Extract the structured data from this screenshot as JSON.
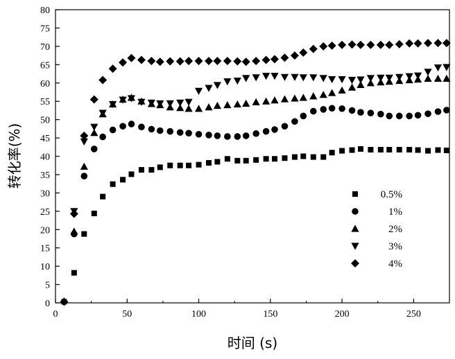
{
  "chart_data": {
    "type": "scatter",
    "title": "",
    "xlabel": "时间 (s)",
    "ylabel": "转化率(%)",
    "xlim": [
      0,
      275
    ],
    "ylim": [
      0,
      80
    ],
    "xticks": [
      0,
      50,
      100,
      150,
      200,
      250
    ],
    "yticks": [
      0,
      5,
      10,
      15,
      20,
      25,
      30,
      35,
      40,
      45,
      50,
      55,
      60,
      65,
      70,
      75,
      80
    ],
    "grid": false,
    "legend_position": "bottom-right",
    "series": [
      {
        "name": "0.5%",
        "marker": "square",
        "points": [
          [
            6,
            0.3
          ],
          [
            13,
            8.2
          ],
          [
            20,
            18.8
          ],
          [
            27,
            24.4
          ],
          [
            33,
            29
          ],
          [
            40,
            32.4
          ],
          [
            47,
            33.6
          ],
          [
            53,
            35.1
          ],
          [
            60,
            36.3
          ],
          [
            67,
            36.3
          ],
          [
            73,
            37
          ],
          [
            80,
            37.5
          ],
          [
            87,
            37.5
          ],
          [
            93,
            37.5
          ],
          [
            100,
            37.7
          ],
          [
            107,
            38.2
          ],
          [
            113,
            38.5
          ],
          [
            120,
            39.3
          ],
          [
            127,
            38.8
          ],
          [
            133,
            38.8
          ],
          [
            140,
            39
          ],
          [
            147,
            39.3
          ],
          [
            153,
            39.3
          ],
          [
            160,
            39.5
          ],
          [
            167,
            39.8
          ],
          [
            173,
            40
          ],
          [
            180,
            39.8
          ],
          [
            187,
            39.8
          ],
          [
            193,
            41
          ],
          [
            200,
            41.5
          ],
          [
            207,
            41.7
          ],
          [
            213,
            42
          ],
          [
            220,
            41.8
          ],
          [
            227,
            41.8
          ],
          [
            233,
            41.8
          ],
          [
            240,
            41.8
          ],
          [
            247,
            41.8
          ],
          [
            253,
            41.7
          ],
          [
            260,
            41.5
          ],
          [
            267,
            41.7
          ],
          [
            273,
            41.6
          ]
        ]
      },
      {
        "name": "1%",
        "marker": "circle",
        "points": [
          [
            13,
            18.8
          ],
          [
            20,
            34.6
          ],
          [
            27,
            42
          ],
          [
            33,
            45.3
          ],
          [
            40,
            47.2
          ],
          [
            47,
            48.2
          ],
          [
            53,
            48.8
          ],
          [
            60,
            48
          ],
          [
            67,
            47.4
          ],
          [
            73,
            47
          ],
          [
            80,
            46.8
          ],
          [
            87,
            46.5
          ],
          [
            93,
            46.3
          ],
          [
            100,
            46
          ],
          [
            107,
            45.8
          ],
          [
            113,
            45.6
          ],
          [
            120,
            45.4
          ],
          [
            127,
            45.4
          ],
          [
            133,
            45.6
          ],
          [
            140,
            46.2
          ],
          [
            147,
            46.8
          ],
          [
            153,
            47.3
          ],
          [
            160,
            48.2
          ],
          [
            167,
            49.5
          ],
          [
            173,
            51
          ],
          [
            180,
            52.3
          ],
          [
            187,
            52.8
          ],
          [
            193,
            53.1
          ],
          [
            200,
            53
          ],
          [
            207,
            52.5
          ],
          [
            213,
            52
          ],
          [
            220,
            51.8
          ],
          [
            227,
            51.5
          ],
          [
            233,
            51
          ],
          [
            240,
            51
          ],
          [
            247,
            51
          ],
          [
            253,
            51.2
          ],
          [
            260,
            51.6
          ],
          [
            267,
            52.2
          ],
          [
            273,
            52.6
          ]
        ]
      },
      {
        "name": "2%",
        "marker": "triangle-up",
        "points": [
          [
            13,
            19.5
          ],
          [
            20,
            37.2
          ],
          [
            27,
            46.4
          ],
          [
            33,
            51.5
          ],
          [
            40,
            54.2
          ],
          [
            47,
            55.5
          ],
          [
            53,
            56
          ],
          [
            60,
            55
          ],
          [
            67,
            54.3
          ],
          [
            73,
            54
          ],
          [
            80,
            53.4
          ],
          [
            87,
            53.2
          ],
          [
            93,
            53
          ],
          [
            100,
            53
          ],
          [
            107,
            53.4
          ],
          [
            113,
            53.8
          ],
          [
            120,
            54
          ],
          [
            127,
            54.2
          ],
          [
            133,
            54.4
          ],
          [
            140,
            54.8
          ],
          [
            147,
            55
          ],
          [
            153,
            55.3
          ],
          [
            160,
            55.6
          ],
          [
            167,
            55.8
          ],
          [
            173,
            56
          ],
          [
            180,
            56.4
          ],
          [
            187,
            56.8
          ],
          [
            193,
            57.3
          ],
          [
            200,
            58
          ],
          [
            207,
            58.8
          ],
          [
            213,
            59.5
          ],
          [
            220,
            60
          ],
          [
            227,
            60.2
          ],
          [
            233,
            60.4
          ],
          [
            240,
            60.6
          ],
          [
            247,
            60.8
          ],
          [
            253,
            61
          ],
          [
            260,
            61.2
          ],
          [
            267,
            61.2
          ],
          [
            273,
            61.2
          ]
        ]
      },
      {
        "name": "3%",
        "marker": "triangle-down",
        "points": [
          [
            13,
            25
          ],
          [
            20,
            44
          ],
          [
            27,
            48
          ],
          [
            33,
            51.8
          ],
          [
            40,
            54.2
          ],
          [
            47,
            55.4
          ],
          [
            53,
            55.8
          ],
          [
            60,
            54.8
          ],
          [
            67,
            54.6
          ],
          [
            73,
            54.4
          ],
          [
            80,
            54.4
          ],
          [
            87,
            54.6
          ],
          [
            93,
            54.8
          ],
          [
            100,
            57.8
          ],
          [
            107,
            58.6
          ],
          [
            113,
            59.4
          ],
          [
            120,
            60.4
          ],
          [
            127,
            60.6
          ],
          [
            133,
            61.3
          ],
          [
            140,
            61.5
          ],
          [
            147,
            61.9
          ],
          [
            153,
            61.9
          ],
          [
            160,
            61.6
          ],
          [
            167,
            61.6
          ],
          [
            173,
            61.5
          ],
          [
            180,
            61.5
          ],
          [
            187,
            61.3
          ],
          [
            193,
            61
          ],
          [
            200,
            61
          ],
          [
            207,
            60.8
          ],
          [
            213,
            60.9
          ],
          [
            220,
            61.3
          ],
          [
            227,
            61.4
          ],
          [
            233,
            61.4
          ],
          [
            240,
            61.6
          ],
          [
            247,
            61.8
          ],
          [
            253,
            62
          ],
          [
            260,
            63
          ],
          [
            267,
            64.2
          ],
          [
            273,
            64.3
          ]
        ]
      },
      {
        "name": "4%",
        "marker": "diamond",
        "points": [
          [
            6,
            0.3
          ],
          [
            13,
            24.3
          ],
          [
            20,
            45.6
          ],
          [
            27,
            55.5
          ],
          [
            33,
            60.8
          ],
          [
            40,
            63.9
          ],
          [
            47,
            65.6
          ],
          [
            53,
            66.8
          ],
          [
            60,
            66.3
          ],
          [
            67,
            66
          ],
          [
            73,
            65.8
          ],
          [
            80,
            65.9
          ],
          [
            87,
            65.9
          ],
          [
            93,
            66
          ],
          [
            100,
            66
          ],
          [
            107,
            66
          ],
          [
            113,
            66
          ],
          [
            120,
            66
          ],
          [
            127,
            65.9
          ],
          [
            133,
            65.8
          ],
          [
            140,
            66
          ],
          [
            147,
            66.3
          ],
          [
            153,
            66.5
          ],
          [
            160,
            66.9
          ],
          [
            167,
            67.5
          ],
          [
            173,
            68.3
          ],
          [
            180,
            69.3
          ],
          [
            187,
            70
          ],
          [
            193,
            70.2
          ],
          [
            200,
            70.4
          ],
          [
            207,
            70.5
          ],
          [
            213,
            70.4
          ],
          [
            220,
            70.4
          ],
          [
            227,
            70.4
          ],
          [
            233,
            70.4
          ],
          [
            240,
            70.6
          ],
          [
            247,
            70.8
          ],
          [
            253,
            70.8
          ],
          [
            260,
            70.9
          ],
          [
            267,
            70.9
          ],
          [
            273,
            70.9
          ]
        ]
      }
    ]
  }
}
